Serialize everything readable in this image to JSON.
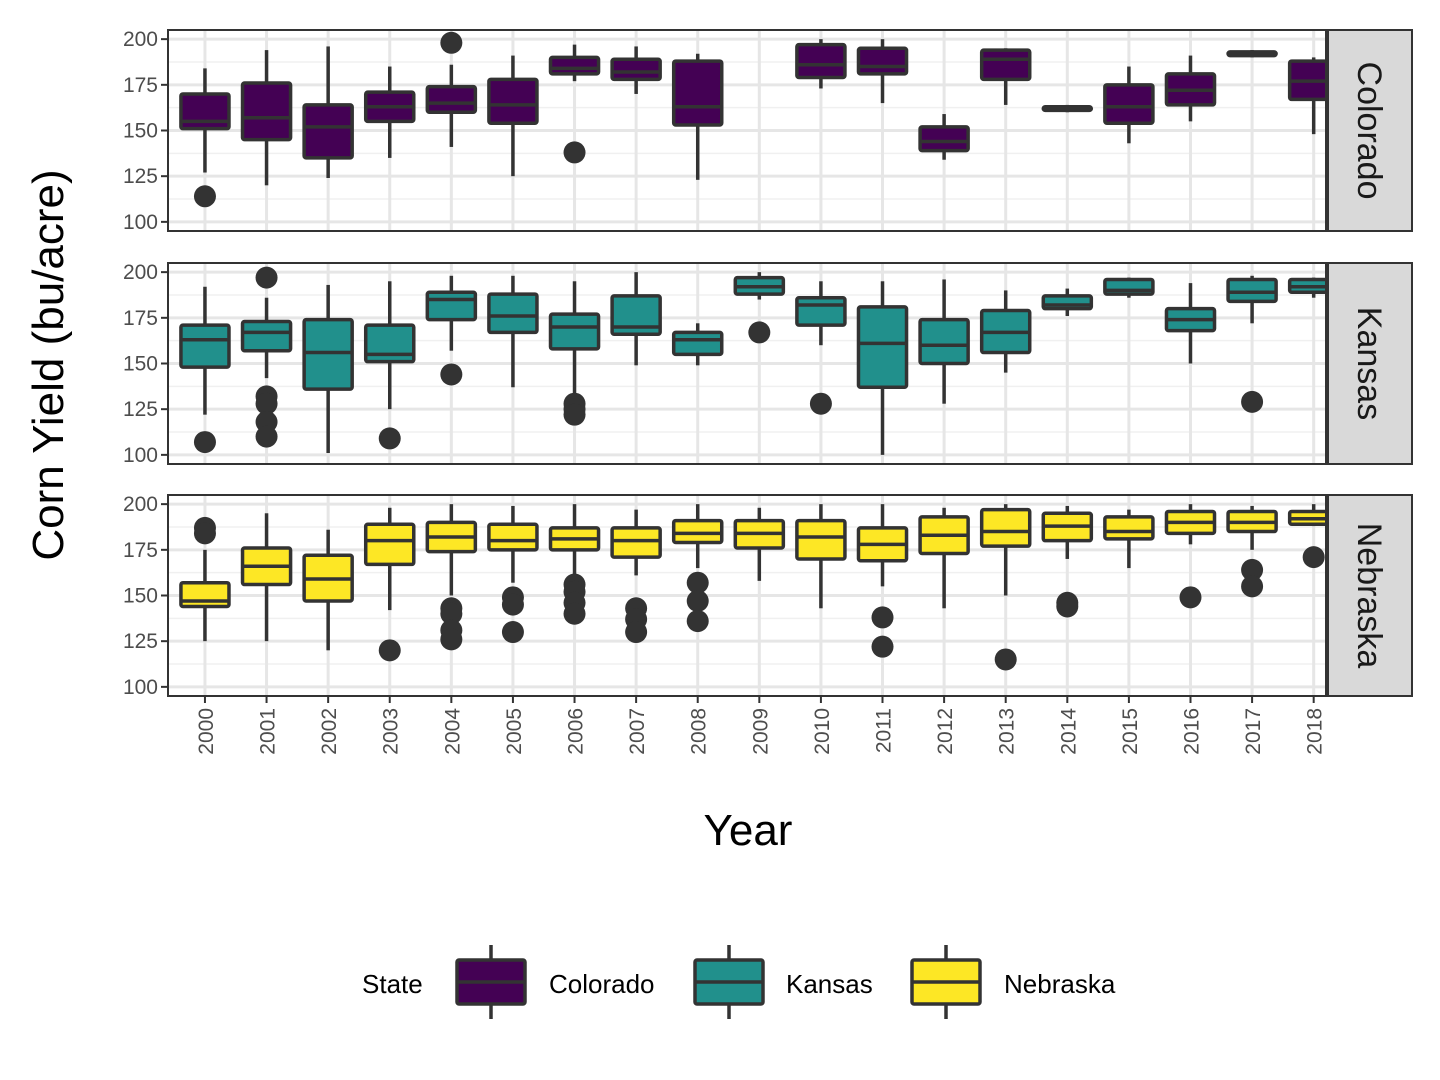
{
  "chart_data": {
    "type": "boxplot",
    "facet_by": "State",
    "xlabel": "Year",
    "ylabel": "Corn Yield (bu/acre)",
    "x_categories": [
      "2000",
      "2001",
      "2002",
      "2003",
      "2004",
      "2005",
      "2006",
      "2007",
      "2008",
      "2009",
      "2010",
      "2011",
      "2012",
      "2013",
      "2014",
      "2015",
      "2016",
      "2017",
      "2018"
    ],
    "y_ticks": [
      100,
      125,
      150,
      175,
      200
    ],
    "ylim": [
      95,
      205
    ],
    "grid": true,
    "legend": {
      "title": "State",
      "placement": "bottom",
      "items": [
        {
          "label": "Colorado",
          "color": "#440154"
        },
        {
          "label": "Kansas",
          "color": "#21908C"
        },
        {
          "label": "Nebraska",
          "color": "#FDE725"
        }
      ]
    },
    "panels": [
      {
        "name": "Colorado",
        "color": "#440154",
        "boxes": [
          {
            "year": "2000",
            "wlo": 127,
            "q1": 151,
            "med": 155,
            "q3": 170,
            "whi": 184,
            "outliers": [
              114
            ]
          },
          {
            "year": "2001",
            "wlo": 120,
            "q1": 145,
            "med": 157,
            "q3": 176,
            "whi": 194,
            "outliers": []
          },
          {
            "year": "2002",
            "wlo": 124,
            "q1": 135,
            "med": 152,
            "q3": 164,
            "whi": 196,
            "outliers": []
          },
          {
            "year": "2003",
            "wlo": 135,
            "q1": 155,
            "med": 163,
            "q3": 171,
            "whi": 185,
            "outliers": []
          },
          {
            "year": "2004",
            "wlo": 141,
            "q1": 160,
            "med": 165,
            "q3": 174,
            "whi": 186,
            "outliers": [
              198
            ]
          },
          {
            "year": "2005",
            "wlo": 125,
            "q1": 154,
            "med": 164,
            "q3": 178,
            "whi": 191,
            "outliers": []
          },
          {
            "year": "2006",
            "wlo": 177,
            "q1": 181,
            "med": 184,
            "q3": 190,
            "whi": 197,
            "outliers": [
              138
            ]
          },
          {
            "year": "2007",
            "wlo": 170,
            "q1": 178,
            "med": 182,
            "q3": 189,
            "whi": 196,
            "outliers": []
          },
          {
            "year": "2008",
            "wlo": 123,
            "q1": 153,
            "med": 163,
            "q3": 188,
            "whi": 192,
            "outliers": []
          },
          {
            "year": "2010",
            "wlo": 173,
            "q1": 179,
            "med": 186,
            "q3": 197,
            "whi": 200,
            "outliers": []
          },
          {
            "year": "2011",
            "wlo": 165,
            "q1": 181,
            "med": 185,
            "q3": 195,
            "whi": 200,
            "outliers": []
          },
          {
            "year": "2012",
            "wlo": 134,
            "q1": 139,
            "med": 144,
            "q3": 152,
            "whi": 159,
            "outliers": []
          },
          {
            "year": "2013",
            "wlo": 164,
            "q1": 178,
            "med": 189,
            "q3": 194,
            "whi": 195,
            "outliers": []
          },
          {
            "year": "2014",
            "wlo": 160,
            "q1": 161,
            "med": 162,
            "q3": 163,
            "whi": 164,
            "outliers": []
          },
          {
            "year": "2015",
            "wlo": 143,
            "q1": 154,
            "med": 163,
            "q3": 175,
            "whi": 185,
            "outliers": []
          },
          {
            "year": "2016",
            "wlo": 155,
            "q1": 164,
            "med": 172,
            "q3": 181,
            "whi": 191,
            "outliers": []
          },
          {
            "year": "2017",
            "wlo": 190,
            "q1": 191,
            "med": 192,
            "q3": 193,
            "whi": 194,
            "outliers": []
          },
          {
            "year": "2018",
            "wlo": 148,
            "q1": 167,
            "med": 177,
            "q3": 188,
            "whi": 190,
            "outliers": []
          }
        ]
      },
      {
        "name": "Kansas",
        "color": "#21908C",
        "boxes": [
          {
            "year": "2000",
            "wlo": 122,
            "q1": 148,
            "med": 163,
            "q3": 171,
            "whi": 192,
            "outliers": [
              107
            ]
          },
          {
            "year": "2001",
            "wlo": 142,
            "q1": 157,
            "med": 167,
            "q3": 173,
            "whi": 186,
            "outliers": [
              132,
              128,
              118,
              110,
              197
            ]
          },
          {
            "year": "2002",
            "wlo": 101,
            "q1": 136,
            "med": 156,
            "q3": 174,
            "whi": 193,
            "outliers": []
          },
          {
            "year": "2003",
            "wlo": 125,
            "q1": 151,
            "med": 155,
            "q3": 171,
            "whi": 195,
            "outliers": [
              109
            ]
          },
          {
            "year": "2004",
            "wlo": 157,
            "q1": 174,
            "med": 185,
            "q3": 189,
            "whi": 198,
            "outliers": [
              144
            ]
          },
          {
            "year": "2005",
            "wlo": 137,
            "q1": 167,
            "med": 176,
            "q3": 188,
            "whi": 198,
            "outliers": []
          },
          {
            "year": "2006",
            "wlo": 133,
            "q1": 158,
            "med": 170,
            "q3": 177,
            "whi": 195,
            "outliers": [
              128,
              125,
              122
            ]
          },
          {
            "year": "2007",
            "wlo": 149,
            "q1": 166,
            "med": 170,
            "q3": 187,
            "whi": 200,
            "outliers": []
          },
          {
            "year": "2008",
            "wlo": 149,
            "q1": 155,
            "med": 163,
            "q3": 167,
            "whi": 172,
            "outliers": []
          },
          {
            "year": "2009",
            "wlo": 185,
            "q1": 188,
            "med": 192,
            "q3": 197,
            "whi": 200,
            "outliers": [
              167
            ]
          },
          {
            "year": "2010",
            "wlo": 160,
            "q1": 171,
            "med": 182,
            "q3": 186,
            "whi": 195,
            "outliers": [
              128
            ]
          },
          {
            "year": "2011",
            "wlo": 100,
            "q1": 137,
            "med": 161,
            "q3": 181,
            "whi": 195,
            "outliers": []
          },
          {
            "year": "2012",
            "wlo": 128,
            "q1": 150,
            "med": 160,
            "q3": 174,
            "whi": 196,
            "outliers": []
          },
          {
            "year": "2013",
            "wlo": 145,
            "q1": 156,
            "med": 167,
            "q3": 179,
            "whi": 190,
            "outliers": []
          },
          {
            "year": "2014",
            "wlo": 176,
            "q1": 180,
            "med": 182,
            "q3": 187,
            "whi": 191,
            "outliers": []
          },
          {
            "year": "2015",
            "wlo": 186,
            "q1": 188,
            "med": 190,
            "q3": 196,
            "whi": 197,
            "outliers": []
          },
          {
            "year": "2016",
            "wlo": 150,
            "q1": 168,
            "med": 174,
            "q3": 180,
            "whi": 194,
            "outliers": []
          },
          {
            "year": "2017",
            "wlo": 172,
            "q1": 184,
            "med": 189,
            "q3": 196,
            "whi": 198,
            "outliers": [
              129
            ]
          },
          {
            "year": "2018",
            "wlo": 186,
            "q1": 189,
            "med": 192,
            "q3": 196,
            "whi": 197,
            "outliers": []
          }
        ]
      },
      {
        "name": "Nebraska",
        "color": "#FDE725",
        "boxes": [
          {
            "year": "2000",
            "wlo": 125,
            "q1": 144,
            "med": 147,
            "q3": 157,
            "whi": 175,
            "outliers": [
              187,
              184
            ]
          },
          {
            "year": "2001",
            "wlo": 125,
            "q1": 156,
            "med": 166,
            "q3": 176,
            "whi": 195,
            "outliers": []
          },
          {
            "year": "2002",
            "wlo": 120,
            "q1": 147,
            "med": 159,
            "q3": 172,
            "whi": 186,
            "outliers": []
          },
          {
            "year": "2003",
            "wlo": 142,
            "q1": 167,
            "med": 180,
            "q3": 189,
            "whi": 198,
            "outliers": [
              120
            ]
          },
          {
            "year": "2004",
            "wlo": 150,
            "q1": 174,
            "med": 182,
            "q3": 190,
            "whi": 200,
            "outliers": [
              143,
              140,
              131,
              126
            ]
          },
          {
            "year": "2005",
            "wlo": 157,
            "q1": 175,
            "med": 180,
            "q3": 189,
            "whi": 199,
            "outliers": [
              149,
              145,
              130
            ]
          },
          {
            "year": "2006",
            "wlo": 160,
            "q1": 175,
            "med": 181,
            "q3": 187,
            "whi": 200,
            "outliers": [
              156,
              152,
              146,
              140
            ]
          },
          {
            "year": "2007",
            "wlo": 161,
            "q1": 171,
            "med": 180,
            "q3": 187,
            "whi": 197,
            "outliers": [
              143,
              137,
              130
            ]
          },
          {
            "year": "2008",
            "wlo": 165,
            "q1": 179,
            "med": 184,
            "q3": 191,
            "whi": 200,
            "outliers": [
              157,
              147,
              136
            ]
          },
          {
            "year": "2009",
            "wlo": 158,
            "q1": 176,
            "med": 184,
            "q3": 191,
            "whi": 198,
            "outliers": []
          },
          {
            "year": "2010",
            "wlo": 143,
            "q1": 170,
            "med": 182,
            "q3": 191,
            "whi": 200,
            "outliers": []
          },
          {
            "year": "2011",
            "wlo": 155,
            "q1": 169,
            "med": 178,
            "q3": 187,
            "whi": 200,
            "outliers": [
              138,
              122
            ]
          },
          {
            "year": "2012",
            "wlo": 143,
            "q1": 173,
            "med": 183,
            "q3": 193,
            "whi": 198,
            "outliers": []
          },
          {
            "year": "2013",
            "wlo": 150,
            "q1": 177,
            "med": 185,
            "q3": 197,
            "whi": 200,
            "outliers": [
              115
            ]
          },
          {
            "year": "2014",
            "wlo": 170,
            "q1": 180,
            "med": 188,
            "q3": 195,
            "whi": 199,
            "outliers": [
              146,
              144
            ]
          },
          {
            "year": "2015",
            "wlo": 165,
            "q1": 181,
            "med": 185,
            "q3": 193,
            "whi": 197,
            "outliers": []
          },
          {
            "year": "2016",
            "wlo": 178,
            "q1": 184,
            "med": 190,
            "q3": 196,
            "whi": 200,
            "outliers": [
              149
            ]
          },
          {
            "year": "2017",
            "wlo": 175,
            "q1": 185,
            "med": 190,
            "q3": 196,
            "whi": 199,
            "outliers": [
              164,
              155
            ]
          },
          {
            "year": "2018",
            "wlo": 188,
            "q1": 189,
            "med": 192,
            "q3": 196,
            "whi": 200,
            "outliers": [
              171
            ]
          }
        ]
      }
    ]
  }
}
